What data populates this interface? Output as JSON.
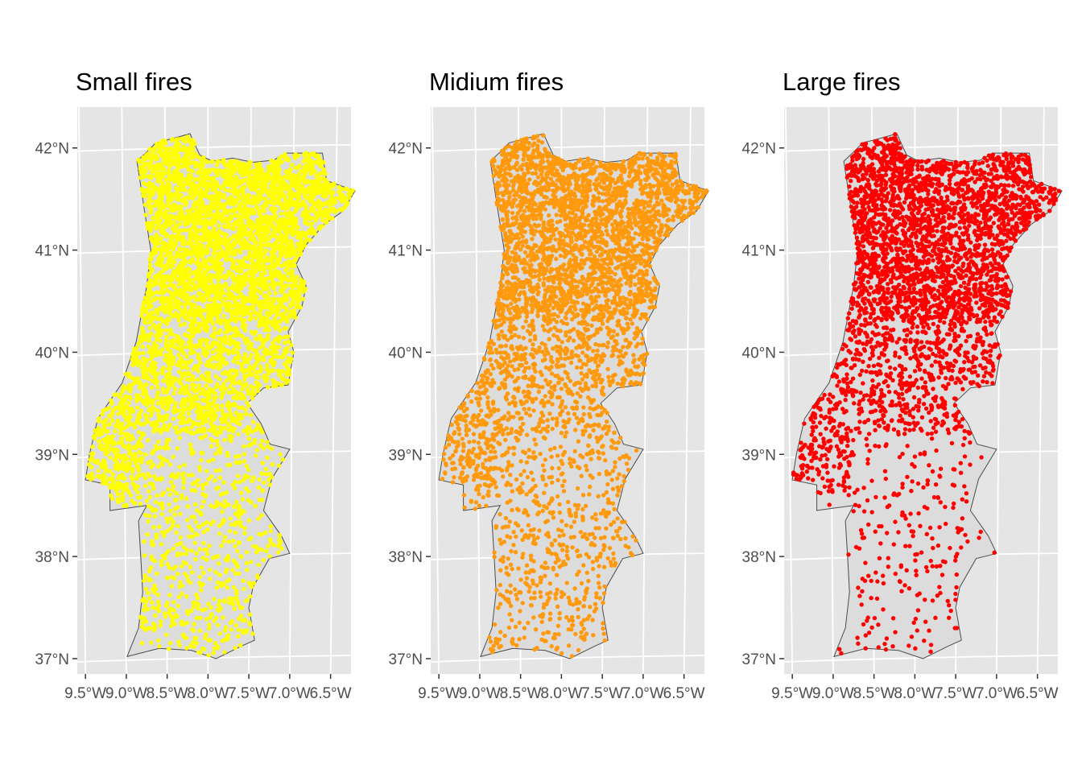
{
  "figure": {
    "panel_background": "#e5e5e5",
    "grid_color": "#ffffff",
    "land_fill": "#dcdcdc",
    "border_color": "#4d4d4d",
    "y_tick_labels": [
      "42°N",
      "41°N",
      "40°N",
      "39°N",
      "38°N",
      "37°N"
    ],
    "x_tick_labels": [
      "9.5°W",
      "9.0°W",
      "8.5°W",
      "8.0°W",
      "7.5°W",
      "7.0°W",
      "6.5°W"
    ]
  },
  "chart_data": [
    {
      "type": "scatter",
      "title": "Small fires",
      "color": "#ffff00",
      "xlim": [
        -9.6,
        -6.25
      ],
      "ylim": [
        36.85,
        42.4
      ],
      "density": {
        "north_east": "very dense",
        "centre": "dense",
        "south": "moderate"
      }
    },
    {
      "type": "scatter",
      "title": "Midium fires",
      "color": "#ff9a0e",
      "xlim": [
        -9.6,
        -6.25
      ],
      "ylim": [
        36.85,
        42.4
      ],
      "density": {
        "north_east": "very dense",
        "centre": "dense",
        "south": "moderate"
      }
    },
    {
      "type": "scatter",
      "title": "Large fires",
      "color": "#ff0000",
      "xlim": [
        -9.6,
        -6.25
      ],
      "ylim": [
        36.85,
        42.4
      ],
      "density": {
        "north_east": "very dense",
        "centre": "moderate",
        "south": "sparse"
      }
    }
  ]
}
